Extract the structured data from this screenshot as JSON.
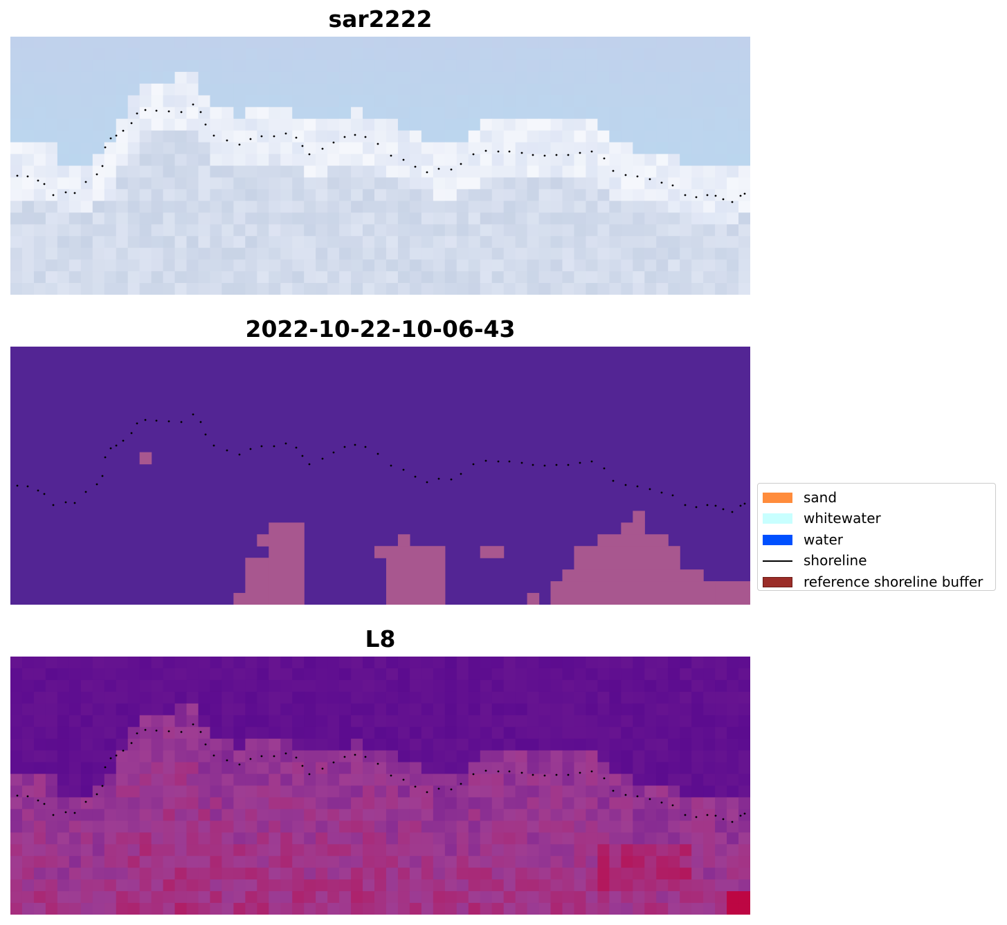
{
  "panels": [
    {
      "title": "sar2222",
      "kind": "rgb"
    },
    {
      "title": "2022-10-22-10-06-43",
      "kind": "classified"
    },
    {
      "title": "L8",
      "kind": "index"
    }
  ],
  "legend": {
    "items": [
      {
        "label": "sand",
        "color": "#ff8c3c",
        "type": "patch"
      },
      {
        "label": "whitewater",
        "color": "#c8ffff",
        "type": "patch"
      },
      {
        "label": "water",
        "color": "#0050ff",
        "type": "patch"
      },
      {
        "label": "shoreline",
        "color": "#000000",
        "type": "line"
      },
      {
        "label": "reference shoreline buffer",
        "color": "#9b2d28",
        "type": "patch"
      }
    ]
  },
  "colors": {
    "background_class": "#532594",
    "buffer_overlay": "#a8578f",
    "index_low": "#54068f",
    "index_high": "#c0003a",
    "rgb_sky": "#c1d1ec",
    "rgb_foam": "#e6ebf7"
  }
}
